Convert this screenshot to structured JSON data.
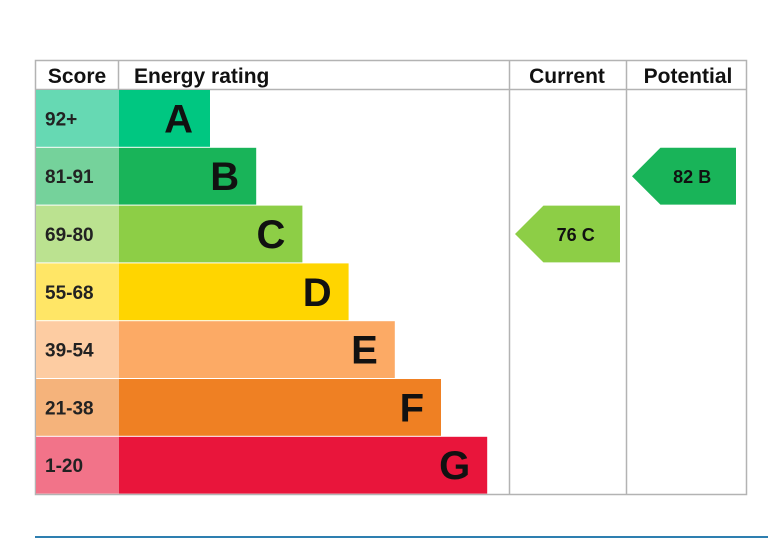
{
  "headers": {
    "score": "Score",
    "energy_rating": "Energy rating",
    "current": "Current",
    "potential": "Potential"
  },
  "chart_data": {
    "type": "bar",
    "categories": [
      "A",
      "B",
      "C",
      "D",
      "E",
      "F",
      "G"
    ],
    "scores": [
      "92+",
      "81-91",
      "69-80",
      "55-68",
      "39-54",
      "21-38",
      "1-20"
    ],
    "band_colors": [
      "#00c781",
      "#19b459",
      "#8dce46",
      "#ffd500",
      "#fcaa65",
      "#ef8023",
      "#e9153b"
    ],
    "score_colors": [
      "#66d9b3",
      "#75d29b",
      "#bbe290",
      "#ffe666",
      "#fdcca2",
      "#f5b37b",
      "#f27389"
    ],
    "current": {
      "value": 76,
      "band": "C",
      "label": "76 C",
      "color": "#8dce46"
    },
    "potential": {
      "value": 82,
      "band": "B",
      "label": "82 B",
      "color": "#19b459"
    }
  }
}
